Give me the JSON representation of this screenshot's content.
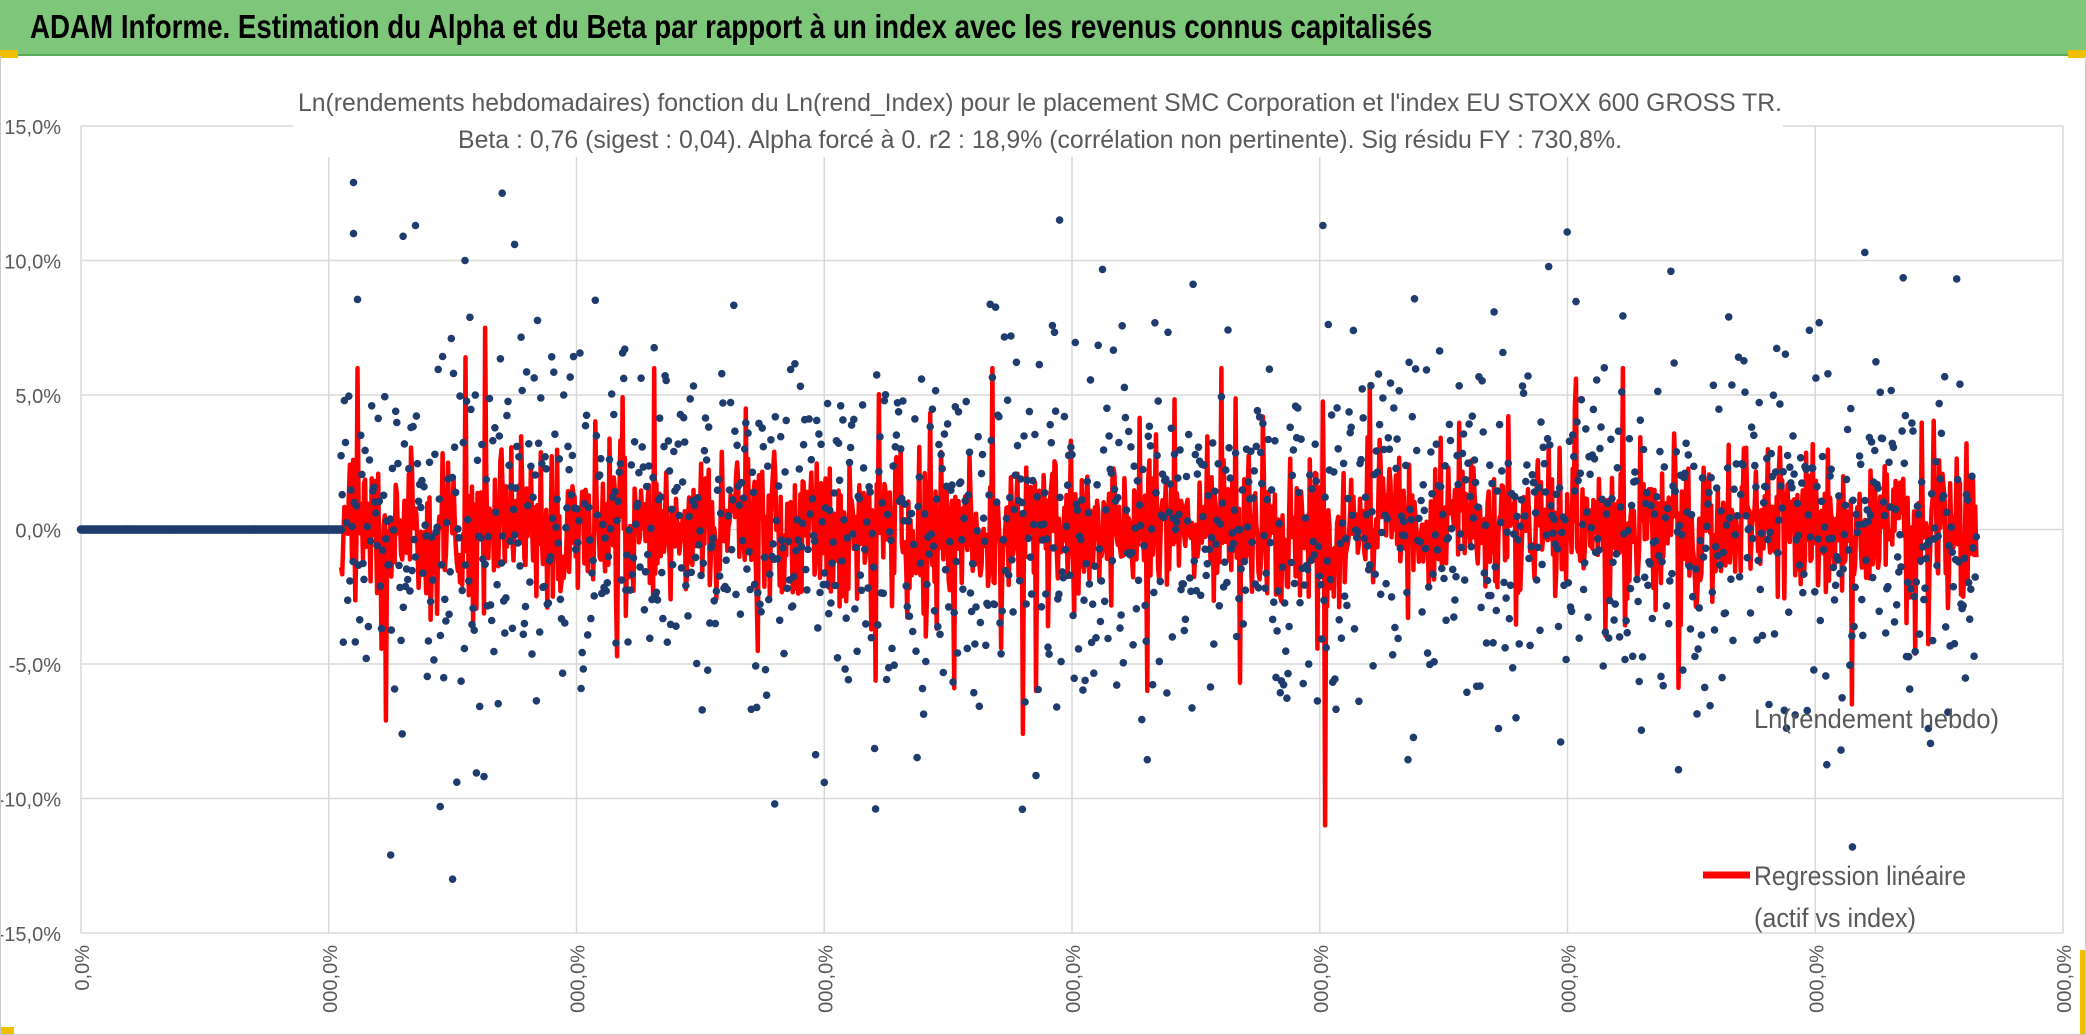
{
  "header": {
    "title": "ADAM Informe. Estimation du Alpha et du Beta par rapport à un index avec les revenus connus capitalisés",
    "background": "#7dc67a",
    "corner_accent": "#f0c000"
  },
  "chart_data": {
    "type": "scatter",
    "title_line1": "Ln(rendements hebdomadaires) fonction du Ln(rend_Index) pour le placement SMC Corporation et l'index EU STOXX 600 GROSS TR.",
    "title_line2": "Beta : 0,76 (sigest : 0,04). Alpha forcé à 0. r2 : 18,9% (corrélation non pertinente). Sig résidu FY : 730,8%.",
    "ylim": [
      -0.15,
      0.15
    ],
    "y_ticks": [
      {
        "value": 0.15,
        "label": "15,0%"
      },
      {
        "value": 0.1,
        "label": "10,0%"
      },
      {
        "value": 0.05,
        "label": "5,0%"
      },
      {
        "value": 0.0,
        "label": "0,0%"
      },
      {
        "value": -0.05,
        "label": "-5,0%"
      },
      {
        "value": -0.1,
        "label": "-10,0%"
      },
      {
        "value": -0.15,
        "label": "-15,0%"
      }
    ],
    "x_ticks": [
      {
        "value": 0,
        "label": "0,0%"
      },
      {
        "value": 1,
        "label": "000,0%"
      },
      {
        "value": 2,
        "label": "000,0%"
      },
      {
        "value": 3,
        "label": "000,0%"
      },
      {
        "value": 4,
        "label": "000,0%"
      },
      {
        "value": 5,
        "label": "000,0%"
      },
      {
        "value": 6,
        "label": "000,0%"
      },
      {
        "value": 7,
        "label": "000,0%"
      },
      {
        "value": 8,
        "label": "000,0%"
      }
    ],
    "xlim": [
      0,
      8
    ],
    "grid": true,
    "legend_position": "right",
    "series": [
      {
        "name": "Ln(rendement hebdo)",
        "kind": "scatter",
        "color": "#1f3c6e",
        "flat_zero_range": [
          0.0,
          1.05
        ],
        "active_range": [
          1.05,
          7.65
        ],
        "point_count": 1500,
        "typical_std": 0.03,
        "notable_points": [
          {
            "x": 1.1,
            "y": 0.129
          },
          {
            "x": 1.1,
            "y": 0.11
          },
          {
            "x": 1.3,
            "y": 0.109
          },
          {
            "x": 1.35,
            "y": 0.113
          },
          {
            "x": 1.55,
            "y": 0.1
          },
          {
            "x": 1.7,
            "y": 0.125
          },
          {
            "x": 1.75,
            "y": 0.106
          },
          {
            "x": 3.95,
            "y": 0.115
          },
          {
            "x": 7.2,
            "y": 0.103
          },
          {
            "x": 1.5,
            "y": -0.13
          },
          {
            "x": 1.25,
            "y": -0.121
          },
          {
            "x": 1.45,
            "y": -0.103
          },
          {
            "x": 2.8,
            "y": -0.102
          },
          {
            "x": 3.0,
            "y": -0.094
          },
          {
            "x": 3.8,
            "y": -0.104
          },
          {
            "x": 7.15,
            "y": -0.118
          }
        ]
      },
      {
        "name": "Regression linéaire (actif vs index)",
        "legend_line1": "Regression linéaire",
        "legend_line2": "(actif vs index)",
        "kind": "line",
        "color": "#ff0000",
        "beta": 0.76,
        "typical_std": 0.014,
        "notable_points": [
          {
            "x": 1.55,
            "y": 0.064
          },
          {
            "x": 1.63,
            "y": 0.075
          },
          {
            "x": 1.23,
            "y": -0.071
          },
          {
            "x": 5.02,
            "y": -0.11
          },
          {
            "x": 5.2,
            "y": 0.054
          },
          {
            "x": 3.8,
            "y": -0.076
          },
          {
            "x": 4.77,
            "y": 0.042
          },
          {
            "x": 4.68,
            "y": -0.057
          },
          {
            "x": 7.15,
            "y": -0.065
          }
        ]
      }
    ]
  }
}
